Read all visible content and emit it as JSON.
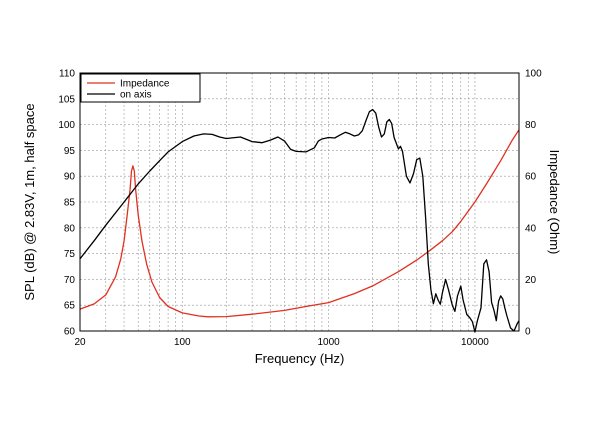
{
  "chart_data": {
    "type": "line",
    "x_scale": "log",
    "xlabel": "Frequency (Hz)",
    "ylabel_left": "SPL (dB) @ 2.83V, 1m, half space",
    "ylabel_right": "Impedance (Ohm)",
    "xlim": [
      20,
      20000
    ],
    "ylim_left": [
      60,
      110
    ],
    "ylim_right": [
      0,
      100
    ],
    "x_tick_labels": [
      "20",
      "100",
      "1000",
      "10000"
    ],
    "y_left_ticks": [
      60,
      65,
      70,
      75,
      80,
      85,
      90,
      95,
      100,
      105,
      110
    ],
    "y_right_ticks": [
      0,
      20,
      40,
      60,
      80,
      100
    ],
    "grid": true,
    "legend_position": "top-left",
    "series": [
      {
        "name": "Impedance",
        "axis": "right",
        "color": "#e03020",
        "points": [
          [
            20,
            8.5
          ],
          [
            25,
            10.5
          ],
          [
            30,
            14
          ],
          [
            35,
            21
          ],
          [
            38,
            28
          ],
          [
            40,
            35
          ],
          [
            42,
            45
          ],
          [
            44,
            55
          ],
          [
            45,
            62
          ],
          [
            46,
            64
          ],
          [
            47,
            62
          ],
          [
            48,
            55
          ],
          [
            50,
            45
          ],
          [
            53,
            35
          ],
          [
            57,
            26
          ],
          [
            62,
            19
          ],
          [
            70,
            13
          ],
          [
            80,
            9.5
          ],
          [
            100,
            7
          ],
          [
            130,
            5.8
          ],
          [
            150,
            5.5
          ],
          [
            200,
            5.6
          ],
          [
            300,
            6.5
          ],
          [
            500,
            8
          ],
          [
            700,
            9.5
          ],
          [
            1000,
            11
          ],
          [
            1500,
            14.5
          ],
          [
            2000,
            17.5
          ],
          [
            3000,
            23
          ],
          [
            4000,
            27.5
          ],
          [
            5000,
            31.5
          ],
          [
            6000,
            35
          ],
          [
            7000,
            38.5
          ],
          [
            8000,
            42.5
          ],
          [
            10000,
            50
          ],
          [
            12000,
            57
          ],
          [
            15000,
            66
          ],
          [
            18000,
            74
          ],
          [
            20000,
            78
          ]
        ]
      },
      {
        "name": "on axis",
        "axis": "left",
        "color": "#000000",
        "points": [
          [
            20,
            74
          ],
          [
            25,
            77.5
          ],
          [
            30,
            80.5
          ],
          [
            40,
            85
          ],
          [
            50,
            88.5
          ],
          [
            60,
            91
          ],
          [
            70,
            93
          ],
          [
            80,
            94.7
          ],
          [
            100,
            96.7
          ],
          [
            120,
            97.8
          ],
          [
            140,
            98.2
          ],
          [
            160,
            98.1
          ],
          [
            180,
            97.6
          ],
          [
            200,
            97.3
          ],
          [
            250,
            97.6
          ],
          [
            300,
            96.7
          ],
          [
            350,
            96.5
          ],
          [
            400,
            97
          ],
          [
            450,
            97.6
          ],
          [
            500,
            96.8
          ],
          [
            550,
            95.2
          ],
          [
            600,
            94.8
          ],
          [
            700,
            94.7
          ],
          [
            800,
            95.5
          ],
          [
            850,
            96.8
          ],
          [
            900,
            97.2
          ],
          [
            1000,
            97.5
          ],
          [
            1100,
            97.4
          ],
          [
            1200,
            98
          ],
          [
            1300,
            98.5
          ],
          [
            1400,
            98.2
          ],
          [
            1500,
            97.8
          ],
          [
            1600,
            98
          ],
          [
            1700,
            98.8
          ],
          [
            1800,
            100.8
          ],
          [
            1900,
            102.5
          ],
          [
            2000,
            102.9
          ],
          [
            2100,
            102.2
          ],
          [
            2200,
            99.5
          ],
          [
            2300,
            97.6
          ],
          [
            2400,
            98.2
          ],
          [
            2500,
            100.5
          ],
          [
            2600,
            101
          ],
          [
            2700,
            100.2
          ],
          [
            2800,
            97.5
          ],
          [
            3000,
            95.3
          ],
          [
            3100,
            95.8
          ],
          [
            3200,
            94.8
          ],
          [
            3400,
            90
          ],
          [
            3600,
            88.7
          ],
          [
            3800,
            90.5
          ],
          [
            4000,
            93.2
          ],
          [
            4200,
            93.5
          ],
          [
            4400,
            90
          ],
          [
            4600,
            82
          ],
          [
            4800,
            73
          ],
          [
            5000,
            68
          ],
          [
            5200,
            65.3
          ],
          [
            5400,
            67.2
          ],
          [
            5600,
            66
          ],
          [
            5800,
            65.2
          ],
          [
            6000,
            67.5
          ],
          [
            6300,
            70
          ],
          [
            6600,
            68
          ],
          [
            7000,
            65
          ],
          [
            7300,
            63.8
          ],
          [
            7600,
            66.8
          ],
          [
            8000,
            68.7
          ],
          [
            8300,
            66
          ],
          [
            8800,
            63.2
          ],
          [
            9200,
            62.6
          ],
          [
            9600,
            61.8
          ],
          [
            10000,
            59.8
          ],
          [
            10400,
            62
          ],
          [
            11000,
            64.5
          ],
          [
            11500,
            73
          ],
          [
            12000,
            73.8
          ],
          [
            12500,
            71.5
          ],
          [
            13000,
            65.5
          ],
          [
            13500,
            64
          ],
          [
            14000,
            62
          ],
          [
            14500,
            65.8
          ],
          [
            15000,
            66.8
          ],
          [
            15500,
            66.2
          ],
          [
            16000,
            64.5
          ],
          [
            16500,
            63
          ],
          [
            17500,
            60.6
          ],
          [
            18500,
            60
          ],
          [
            19500,
            61.5
          ],
          [
            20000,
            62
          ]
        ]
      }
    ]
  }
}
